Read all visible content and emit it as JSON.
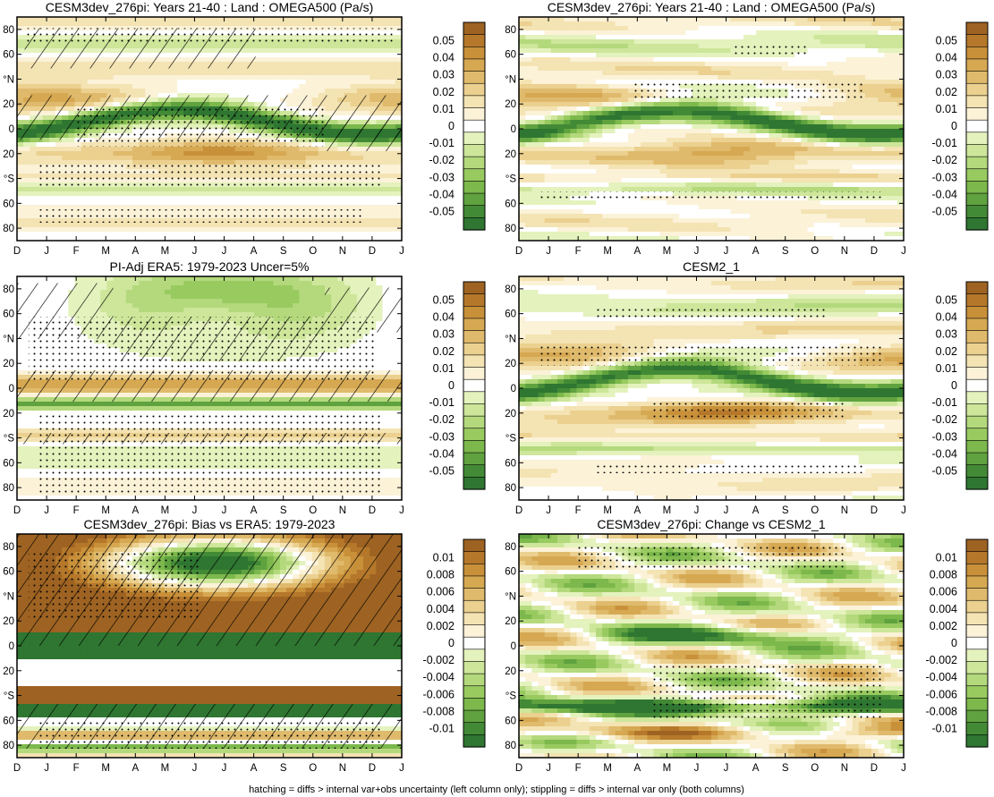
{
  "footer": "hatching = diffs > internal var+obs uncertainty (left column only); stippling = diffs > internal var only (both columns)",
  "month_ticks": [
    "D",
    "J",
    "F",
    "M",
    "A",
    "M",
    "J",
    "J",
    "A",
    "S",
    "O",
    "N",
    "D",
    "J"
  ],
  "lat_ticks": [
    "80",
    "60",
    "°N",
    "20",
    "0",
    "20",
    "°S",
    "60",
    "80"
  ],
  "chart_data": [
    {
      "type": "heatmap",
      "title": "CESM3dev_276pi: Years 21-40 : Land : OMEGA500 (Pa/s)",
      "colorbar": [
        "0.05",
        "0.04",
        "0.03",
        "0.02",
        "0.01",
        "0",
        "-0.01",
        "-0.02",
        "-0.03",
        "-0.04",
        "-0.05"
      ],
      "zlim": [
        -0.055,
        0.055
      ]
    },
    {
      "type": "heatmap",
      "title": "CESM3dev_276pi: Years 21-40 : Land : OMEGA500 (Pa/s)",
      "colorbar": [
        "0.05",
        "0.04",
        "0.03",
        "0.02",
        "0.01",
        "0",
        "-0.01",
        "-0.02",
        "-0.03",
        "-0.04",
        "-0.05"
      ],
      "zlim": [
        -0.055,
        0.055
      ]
    },
    {
      "type": "heatmap",
      "title": "PI-Adj ERA5: 1979-2023 Uncer=5%",
      "colorbar": [
        "0.05",
        "0.04",
        "0.03",
        "0.02",
        "0.01",
        "0",
        "-0.01",
        "-0.02",
        "-0.03",
        "-0.04",
        "-0.05"
      ],
      "zlim": [
        -0.055,
        0.055
      ]
    },
    {
      "type": "heatmap",
      "title": "CESM2_1",
      "colorbar": [
        "0.05",
        "0.04",
        "0.03",
        "0.02",
        "0.01",
        "0",
        "-0.01",
        "-0.02",
        "-0.03",
        "-0.04",
        "-0.05"
      ],
      "zlim": [
        -0.055,
        0.055
      ]
    },
    {
      "type": "heatmap",
      "title": "CESM3dev_276pi: Bias vs ERA5: 1979-2023",
      "colorbar": [
        "0.01",
        "0.008",
        "0.006",
        "0.004",
        "0.002",
        "0",
        "-0.002",
        "-0.004",
        "-0.006",
        "-0.008",
        "-0.01"
      ],
      "zlim": [
        -0.011,
        0.011
      ]
    },
    {
      "type": "heatmap",
      "title": "CESM3dev_276pi: Change vs CESM2_1",
      "colorbar": [
        "0.01",
        "0.008",
        "0.006",
        "0.004",
        "0.002",
        "0",
        "-0.002",
        "-0.004",
        "-0.006",
        "-0.008",
        "-0.01"
      ],
      "zlim": [
        -0.011,
        0.011
      ]
    }
  ],
  "colors": {
    "brown": [
      "#fbf2d8",
      "#f4e3b3",
      "#ebd08f",
      "#e0ba6c",
      "#d6a852",
      "#c9903a",
      "#b5782b",
      "#9e6322"
    ],
    "white": "#ffffff",
    "green": [
      "#e4f2bd",
      "#cde69a",
      "#b3d97c",
      "#98ca60",
      "#7cb84c",
      "#5fa23f",
      "#438a36",
      "#2e7631"
    ]
  }
}
